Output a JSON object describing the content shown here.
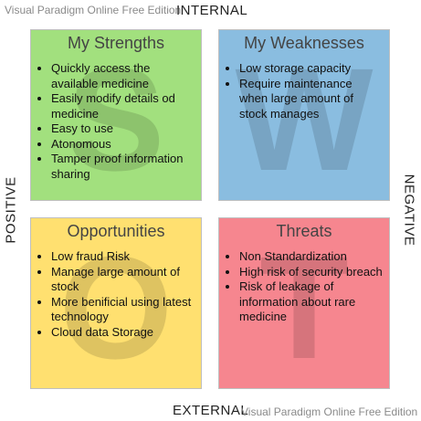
{
  "watermark": {
    "top": "Visual Paradigm Online Free Edition",
    "bottom": "Visual Paradigm Online Free Edition"
  },
  "axes": {
    "top": "INTERNAL",
    "bottom": "EXTERNAL",
    "left": "POSITIVE",
    "right": "NEGATIVE"
  },
  "quadrants": {
    "strengths": {
      "letter": "S",
      "title": "My Strengths",
      "color": "#a2e07e",
      "items": [
        "Quickly access the available medicine",
        "Easily modify details od medicine",
        "Easy to use",
        "Atonomous",
        "Tamper proof information sharing"
      ]
    },
    "weaknesses": {
      "letter": "W",
      "title": "My Weaknesses",
      "color": "#8abde0",
      "items": [
        "Low storage capacity",
        "Require maintenance when large amount of stock manages"
      ]
    },
    "opportunities": {
      "letter": "O",
      "title": "Opportunities",
      "color": "#ffe070",
      "items": [
        "Low fraud Risk",
        "Manage large amount of stock",
        "More benificial using latest technology",
        "Cloud data Storage"
      ]
    },
    "threats": {
      "letter": "T",
      "title": "Threats",
      "color": "#f6868f",
      "items": [
        "Non Standardization",
        "High risk of security breach",
        "Risk of leakage of information about rare medicine"
      ]
    }
  }
}
